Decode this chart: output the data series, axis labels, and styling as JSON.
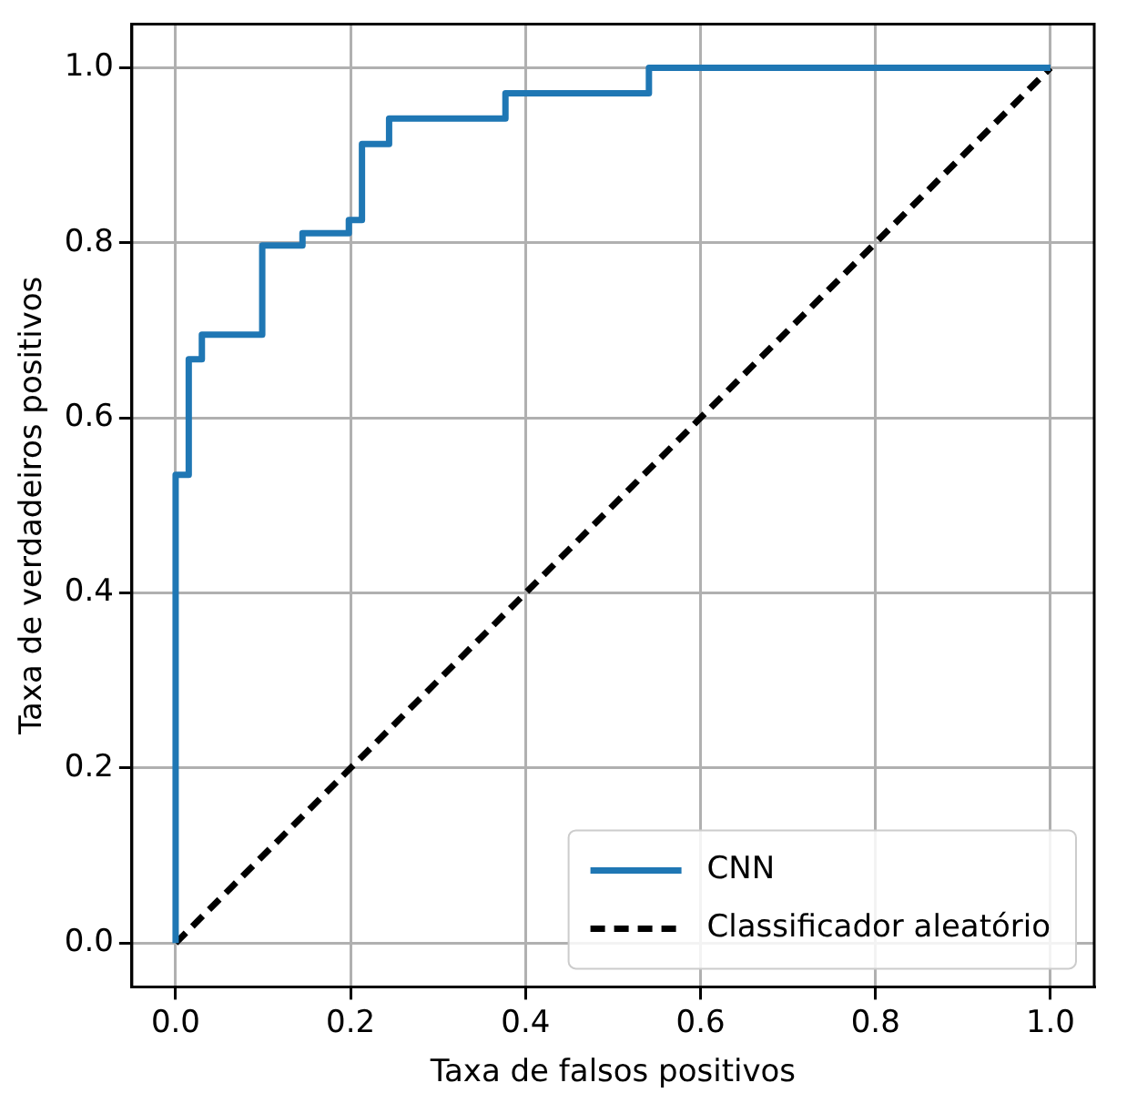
{
  "chart_data": {
    "type": "line",
    "xlabel": "Taxa de falsos positivos",
    "ylabel": "Taxa de verdadeiros positivos",
    "series": [
      {
        "name": "CNN",
        "type": "step",
        "color": "#1f77b4",
        "line_style": "solid",
        "x": [
          0,
          0,
          0.015,
          0.03,
          0.099,
          0.145,
          0.198,
          0.213,
          0.244,
          0.377,
          0.541,
          1.0
        ],
        "values": [
          0,
          0.535,
          0.667,
          0.695,
          0.797,
          0.811,
          0.826,
          0.913,
          0.942,
          0.971,
          1.0,
          1.0
        ]
      },
      {
        "name": "Classificador aleatório",
        "type": "line",
        "color": "#000000",
        "line_style": "dashed",
        "x": [
          0,
          1
        ],
        "values": [
          0,
          1
        ]
      }
    ],
    "xlim": [
      -0.05,
      1.05
    ],
    "ylim": [
      -0.05,
      1.05
    ],
    "xticks": [
      {
        "value": 0,
        "label": "0.0"
      },
      {
        "value": 0.2,
        "label": "0.2"
      },
      {
        "value": 0.4,
        "label": "0.4"
      },
      {
        "value": 0.6,
        "label": "0.6"
      },
      {
        "value": 0.8,
        "label": "0.8"
      },
      {
        "value": 1,
        "label": "1.0"
      }
    ],
    "yticks": [
      {
        "value": 0,
        "label": "0.0"
      },
      {
        "value": 0.2,
        "label": "0.2"
      },
      {
        "value": 0.4,
        "label": "0.4"
      },
      {
        "value": 0.6,
        "label": "0.6"
      },
      {
        "value": 0.8,
        "label": "0.8"
      },
      {
        "value": 1,
        "label": "1.0"
      }
    ],
    "grid": true,
    "legend": "bottom right",
    "marker": "none"
  }
}
